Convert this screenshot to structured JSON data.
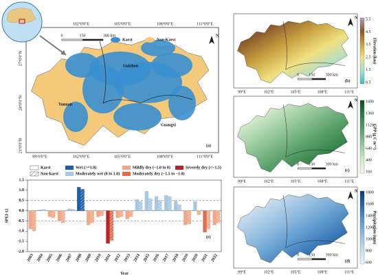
{
  "map_a": {
    "label": "(a)",
    "north": "N",
    "scale": [
      "0",
      "150",
      "300 km"
    ],
    "legend": [
      "Karst",
      "Non-Karst"
    ],
    "regions": [
      "Yunnan",
      "Guizhou",
      "Guangxi"
    ],
    "lat_labels": [
      "27°0'0\"N",
      "24°0'0\"N",
      "21°0'0\"N"
    ],
    "lon_top": [
      "102°0'0\"E",
      "105°0'0\"E",
      "108°0'0\"E",
      "111°0'0\"E"
    ],
    "lon_bottom": [
      "99°0'0\"E",
      "102°0'0\"E",
      "105°0'0\"E",
      "108°0'0\"E",
      "111°0'0\"E"
    ]
  },
  "map_panels": [
    {
      "label": "(b)",
      "north": "N",
      "scale": [
        "0",
        "150",
        "300 km"
      ],
      "lon_labels": [
        "99°E",
        "102°E",
        "105°E",
        "108°E",
        "111°E"
      ],
      "colorbar_title": "Elevation (km)",
      "colorbar_ticks": [
        "5.5",
        "4.5",
        "3.5",
        "2.5",
        "1.5",
        "0.5"
      ],
      "colorbar_colors": [
        "#b89ac8",
        "#8a5a2a",
        "#c8a040",
        "#f0e080",
        "#a8e0d0",
        "#40c0c0"
      ]
    },
    {
      "label": "(c)",
      "north": "N",
      "scale": [
        "0",
        "150",
        "300 km"
      ],
      "lon_labels": [
        "99°E",
        "102°E",
        "105°E",
        "108°E",
        "111°E"
      ],
      "colorbar_title": "GPP (g C m⁻²)",
      "colorbar_ticks": [
        "1600",
        "1360",
        "1120",
        "880",
        "640",
        "400",
        "160"
      ],
      "colorbar_colors": [
        "#0f4d26",
        "#2e7d45",
        "#5aa06a",
        "#94c79a",
        "#cfe8c8",
        "#f2f8ee"
      ]
    },
    {
      "label": "(d)",
      "north": "N",
      "scale": [
        "0",
        "150",
        "300 km"
      ],
      "lon_labels": [
        "99°E",
        "102°E",
        "105°E",
        "108°E",
        "111°E"
      ],
      "colorbar_title": "Precipitation (mm)",
      "colorbar_ticks": [
        "1800",
        "1600",
        "1400",
        "1200",
        "1000",
        "800",
        "600"
      ],
      "colorbar_colors": [
        "#0b3a78",
        "#2a6aae",
        "#5b97cc",
        "#93bde0",
        "#c8dcef",
        "#eef4fa"
      ]
    }
  ],
  "chart_data": {
    "type": "bar",
    "panel_label": "(e)",
    "ylabel": "SPEI-12",
    "xlabel": "Year",
    "categories": [
      "2003",
      "2004",
      "2005",
      "2006",
      "2007",
      "2008",
      "2009",
      "2010",
      "2011",
      "2012",
      "2013",
      "2014",
      "2015",
      "2016",
      "2017",
      "2018",
      "2019",
      "2020",
      "2021",
      "2022"
    ],
    "ylim": [
      -2.0,
      1.5
    ],
    "yticks": [
      {
        "value": -2.0,
        "label": "-2.0"
      },
      -1.5,
      {
        "value": -1.0,
        "label": "-1.0"
      },
      -0.5,
      {
        "value": 0,
        "label": "0.0"
      },
      0.5,
      {
        "value": 1.0,
        "label": "1.0"
      },
      1.5
    ],
    "reference_lines": [
      -0.5,
      0.5
    ],
    "series": [
      {
        "name": "Karst",
        "style": "solid",
        "values": [
          -0.9,
          0.05,
          -0.3,
          -0.5,
          0.1,
          1.15,
          -0.7,
          -0.3,
          -1.6,
          -0.35,
          -0.4,
          0.55,
          0.95,
          0.7,
          0.75,
          0.5,
          -0.7,
          0.45,
          -1.05,
          -0.7
        ],
        "colors": [
          "#f0a888",
          "#a8c8e0",
          "#f0a888",
          "#f0a888",
          "#a8c8e0",
          "#1f5fa8",
          "#f0a888",
          "#f0a888",
          "#b0282a",
          "#f0a888",
          "#f0a888",
          "#a8c8e0",
          "#a8c8e0",
          "#a8c8e0",
          "#a8c8e0",
          "#a8c8e0",
          "#f0a888",
          "#a8c8e0",
          "#e06c50",
          "#f0a888"
        ]
      },
      {
        "name": "Non-karst",
        "style": "hatched",
        "values": [
          -1.0,
          0.07,
          -0.35,
          -0.6,
          0.08,
          1.05,
          -0.6,
          -0.25,
          -1.45,
          -0.3,
          -0.3,
          0.45,
          0.6,
          0.5,
          0.7,
          0.3,
          -0.65,
          -0.2,
          -0.9,
          -0.6
        ],
        "colors": [
          "#f0a888",
          "#a8c8e0",
          "#f0a888",
          "#f0a888",
          "#a8c8e0",
          "#1f5fa8",
          "#f0a888",
          "#f0a888",
          "#e06c50",
          "#f0a888",
          "#f0a888",
          "#a8c8e0",
          "#a8c8e0",
          "#a8c8e0",
          "#a8c8e0",
          "#a8c8e0",
          "#f0a888",
          "#f0a888",
          "#f0a888",
          "#f0a888"
        ]
      }
    ],
    "classes": [
      {
        "name": "Wet (>=1.0)",
        "color": "#1f5fa8"
      },
      {
        "name": "Moderately wet (0 to 1.0)",
        "color": "#a8c8e0"
      },
      {
        "name": "Mildly dry (−1.0 to 0)",
        "color": "#f0a888"
      },
      {
        "name": "Moderately dry (−1.5 to −1.0)",
        "color": "#e06c50"
      },
      {
        "name": "Severely dry (<−1.5)",
        "color": "#b0282a"
      }
    ]
  }
}
